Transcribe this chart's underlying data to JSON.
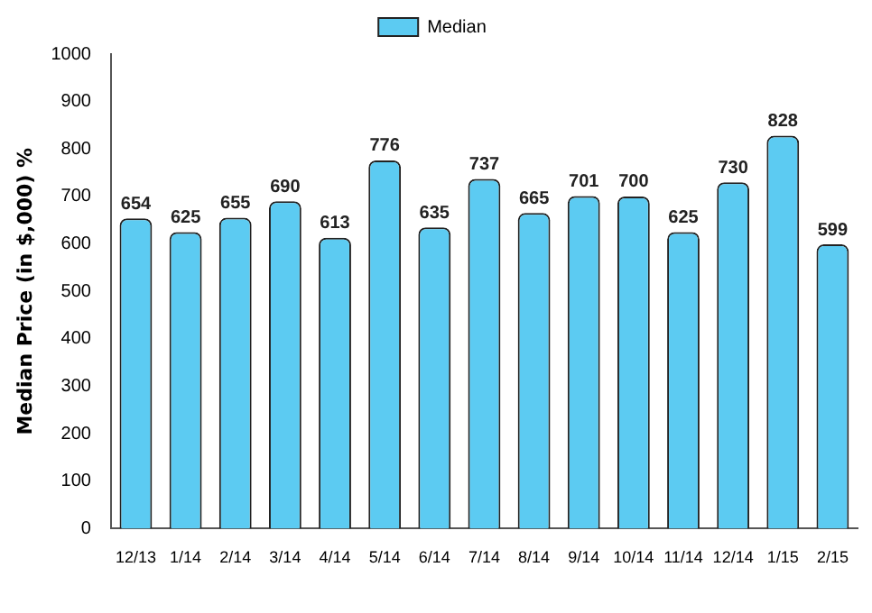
{
  "chart_data": {
    "type": "bar",
    "ylabel": "Median Price (in $,000) %",
    "categories": [
      "12/13",
      "1/14",
      "2/14",
      "3/14",
      "4/14",
      "5/14",
      "6/14",
      "7/14",
      "8/14",
      "9/14",
      "10/14",
      "11/14",
      "12/14",
      "1/15",
      "2/15"
    ],
    "series": [
      {
        "name": "Median",
        "color": "#5ccbf2",
        "values": [
          654,
          625,
          655,
          690,
          613,
          776,
          635,
          737,
          665,
          701,
          700,
          625,
          730,
          828,
          599
        ]
      }
    ],
    "ylim": [
      0,
      1000
    ],
    "yticks": [
      0,
      100,
      200,
      300,
      400,
      500,
      600,
      700,
      800,
      900,
      1000
    ],
    "grid": false,
    "legend": "top",
    "data_labels": true
  }
}
